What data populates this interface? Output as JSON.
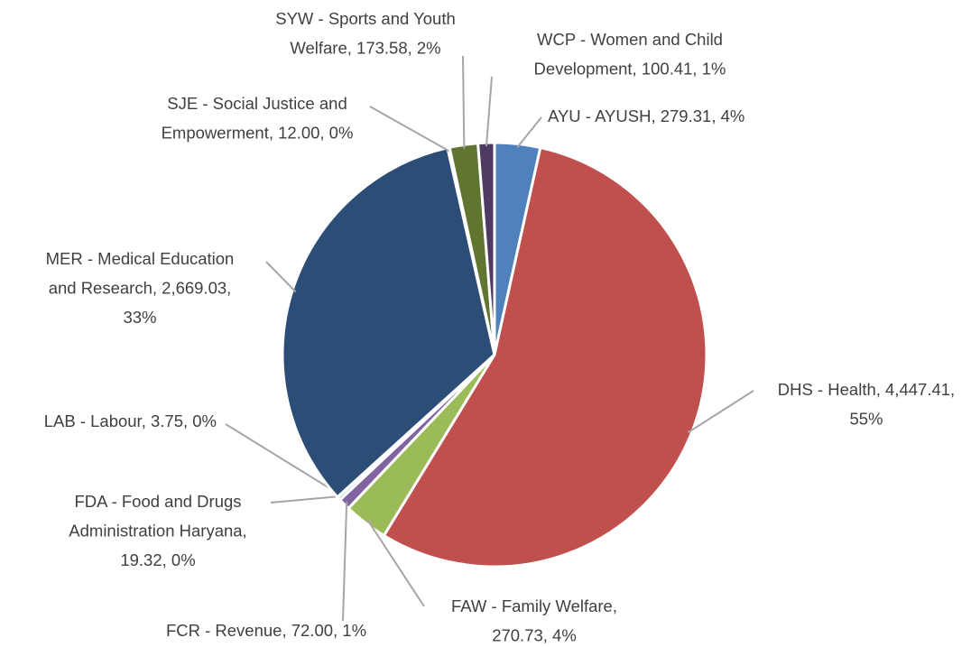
{
  "chart_data": {
    "type": "pie",
    "categories": [
      "AYU - AYUSH",
      "DHS - Health",
      "FAW - Family Welfare",
      "FCR - Revenue",
      "FDA - Food and Drugs Administration Haryana",
      "LAB - Labour",
      "MER - Medical Education and Research",
      "SJE - Social Justice and Empowerment",
      "SYW - Sports and Youth Welfare",
      "WCP - Women and Child Development"
    ],
    "values": [
      279.31,
      4447.41,
      270.73,
      72.0,
      19.32,
      3.75,
      2669.03,
      12.0,
      173.58,
      100.41
    ],
    "value_labels": [
      [
        "AYU - AYUSH, 279.31, 4%"
      ],
      [
        "DHS - Health, 4,447.41,",
        "55%"
      ],
      [
        "FAW - Family Welfare,",
        "270.73, 4%"
      ],
      [
        "FCR - Revenue, 72.00, 1%"
      ],
      [
        "FDA - Food and Drugs",
        "Administration Haryana,",
        "19.32, 0%"
      ],
      [
        "LAB - Labour, 3.75, 0%"
      ],
      [
        "MER - Medical Education",
        "and Research, 2,669.03,",
        "33%"
      ],
      [
        "SJE - Social Justice and",
        "Empowerment, 12.00, 0%"
      ],
      [
        "SYW - Sports and Youth",
        "Welfare, 173.58, 2%"
      ],
      [
        "WCP - Women and Child",
        "Development, 100.41, 1%"
      ]
    ],
    "colors": [
      "#4f81bd",
      "#c0504d",
      "#9bbb59",
      "#8064a2",
      "#4bacc6",
      "#f79646",
      "#2c4d75",
      "#772c2a",
      "#5f7530",
      "#4d3b62"
    ]
  }
}
